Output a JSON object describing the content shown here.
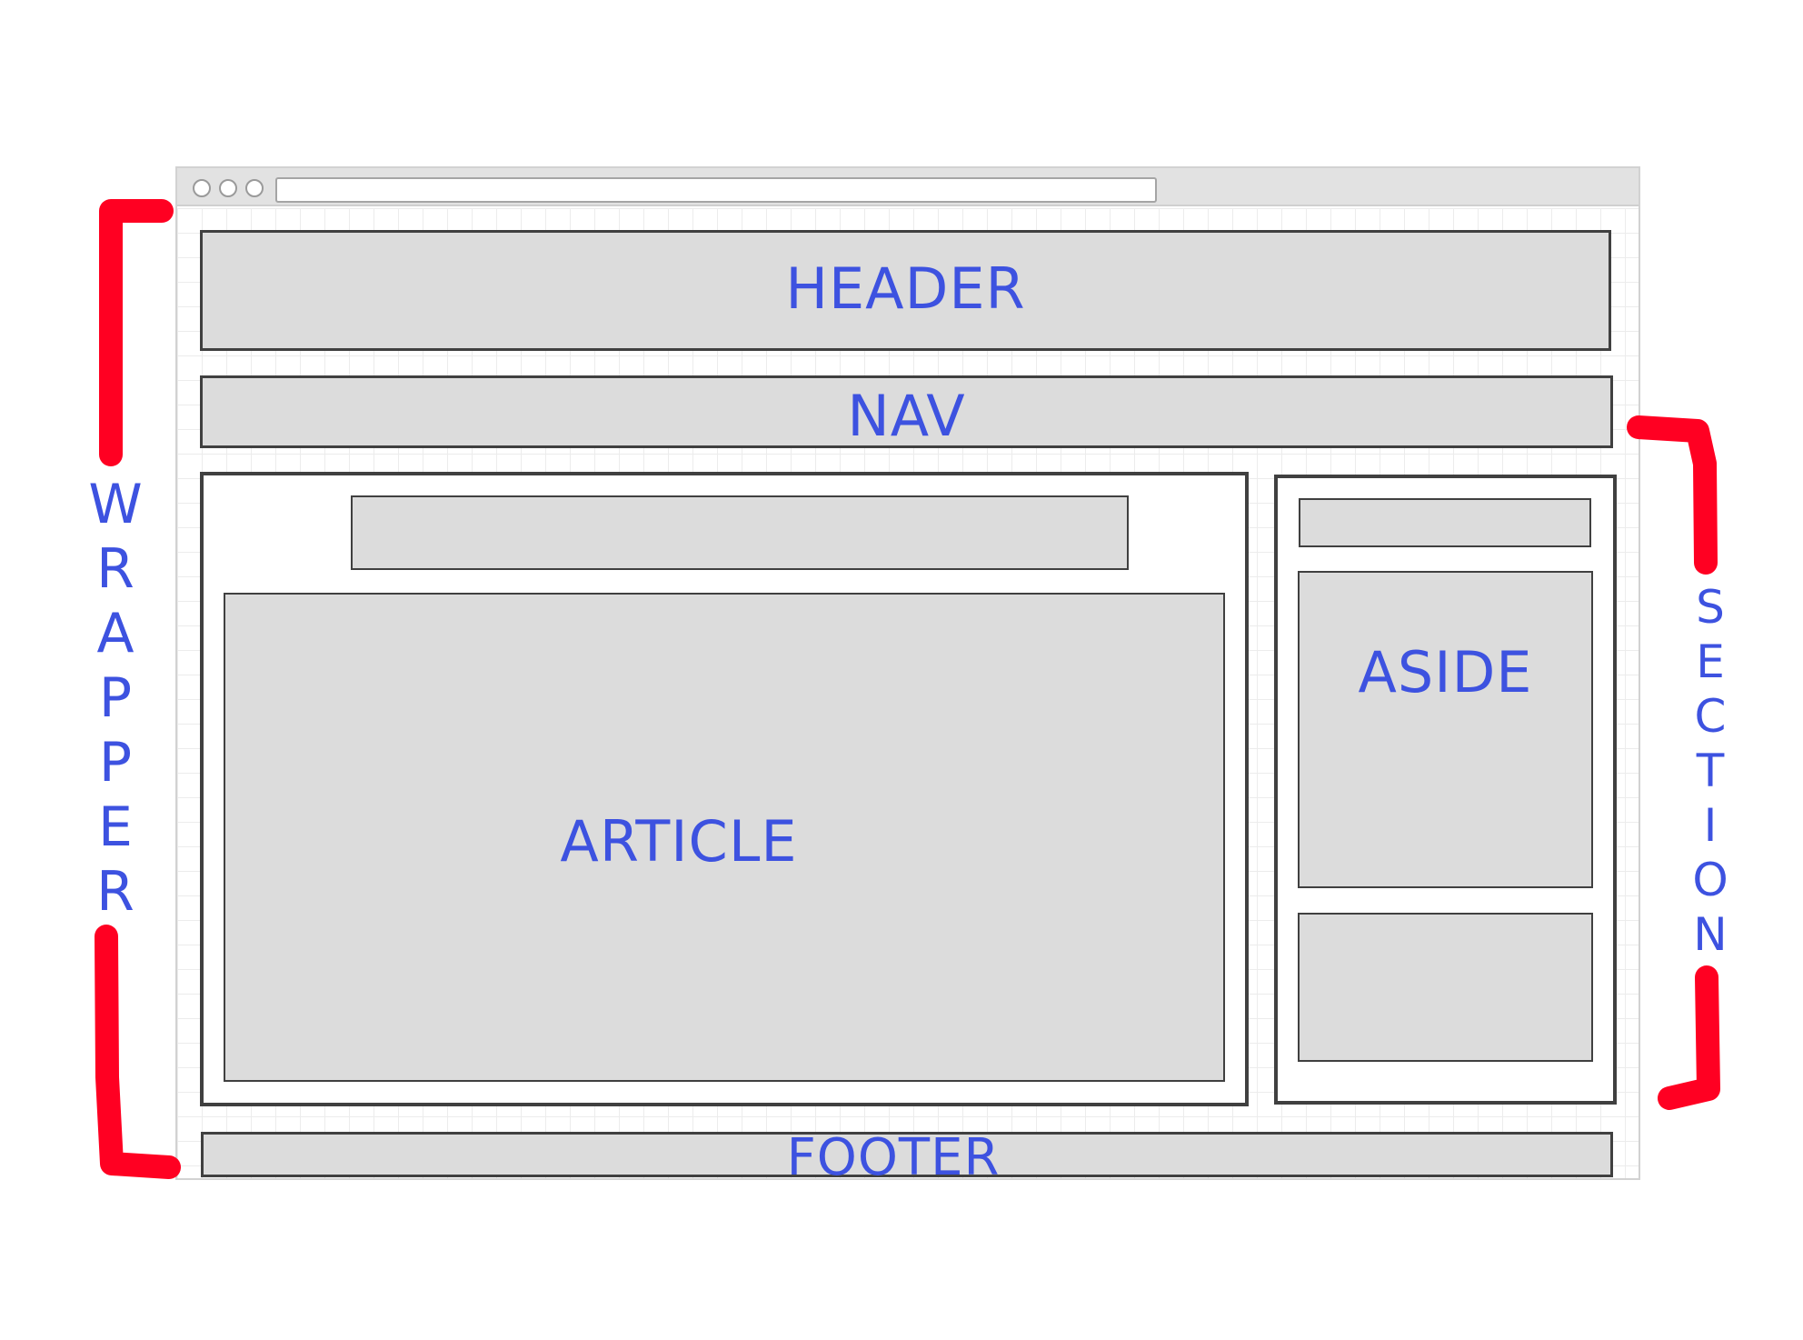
{
  "labels": {
    "header": "HEADER",
    "nav": "NAV",
    "article": "ARTICLE",
    "aside": "ASIDE",
    "footer": "FOOTER",
    "wrapper": "WRAPPER",
    "section": "SECTION"
  },
  "colors": {
    "label_text": "#3d52e0",
    "bracket": "#ff0022",
    "box_fill": "#dcdcdc",
    "box_border": "#404040"
  }
}
